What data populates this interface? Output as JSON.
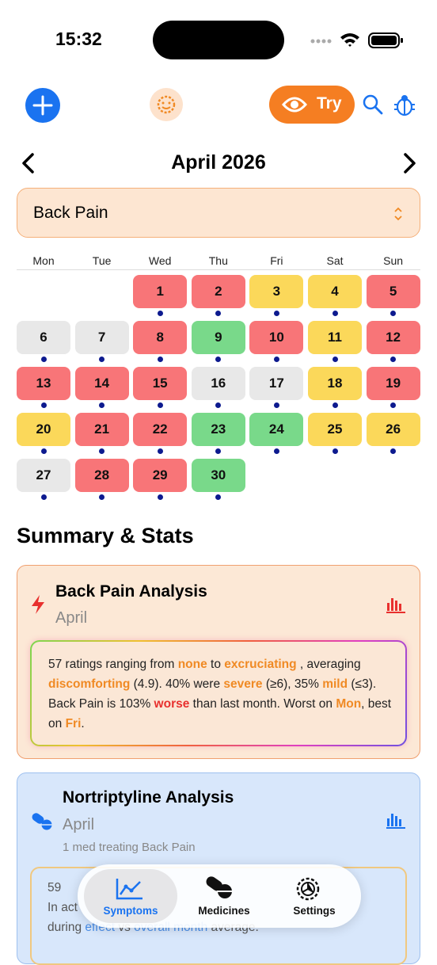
{
  "status": {
    "time": "15:32"
  },
  "toolbar": {
    "try": "Try"
  },
  "calendar": {
    "month": "April 2026",
    "selector": "Back Pain",
    "weekdays": [
      "Mon",
      "Tue",
      "Wed",
      "Thu",
      "Fri",
      "Sat",
      "Sun"
    ],
    "days": [
      {
        "label": "1",
        "color": "#f87578"
      },
      {
        "label": "2",
        "color": "#f87578"
      },
      {
        "label": "3",
        "color": "#fbd85a"
      },
      {
        "label": "4",
        "color": "#fbd85a"
      },
      {
        "label": "5",
        "color": "#f87578"
      },
      {
        "label": "6",
        "color": "#e8e8e8"
      },
      {
        "label": "7",
        "color": "#e8e8e8"
      },
      {
        "label": "8",
        "color": "#f87578"
      },
      {
        "label": "9",
        "color": "#79d98a"
      },
      {
        "label": "10",
        "color": "#f87578"
      },
      {
        "label": "11",
        "color": "#fbd85a"
      },
      {
        "label": "12",
        "color": "#f87578"
      },
      {
        "label": "13",
        "color": "#f87578"
      },
      {
        "label": "14",
        "color": "#f87578"
      },
      {
        "label": "15",
        "color": "#f87578"
      },
      {
        "label": "16",
        "color": "#e8e8e8"
      },
      {
        "label": "17",
        "color": "#e8e8e8"
      },
      {
        "label": "18",
        "color": "#fbd85a"
      },
      {
        "label": "19",
        "color": "#f87578"
      },
      {
        "label": "20",
        "color": "#fbd85a"
      },
      {
        "label": "21",
        "color": "#f87578"
      },
      {
        "label": "22",
        "color": "#f87578"
      },
      {
        "label": "23",
        "color": "#79d98a"
      },
      {
        "label": "24",
        "color": "#79d98a"
      },
      {
        "label": "25",
        "color": "#fbd85a"
      },
      {
        "label": "26",
        "color": "#fbd85a"
      },
      {
        "label": "27",
        "color": "#e8e8e8"
      },
      {
        "label": "28",
        "color": "#f87578"
      },
      {
        "label": "29",
        "color": "#f87578"
      },
      {
        "label": "30",
        "color": "#79d98a"
      }
    ]
  },
  "summary": {
    "heading": "Summary & Stats",
    "cards": [
      {
        "title": "Back Pain Analysis",
        "subtitle": "April",
        "segments": [
          {
            "text": "57 ratings ranging from ",
            "color": "#222222"
          },
          {
            "text": "none",
            "color": "#f08a24"
          },
          {
            "text": " to ",
            "color": "#222222"
          },
          {
            "text": "excruciating",
            "color": "#f08a24"
          },
          {
            "text": " , averaging ",
            "color": "#222222"
          },
          {
            "text": "discomforting",
            "color": "#f08a24"
          },
          {
            "text": " (4.9). 40% were ",
            "color": "#222222"
          },
          {
            "text": "severe",
            "color": "#f08a24"
          },
          {
            "text": " (≥6), 35% ",
            "color": "#222222"
          },
          {
            "text": "mild",
            "color": "#f08a24"
          },
          {
            "text": " (≤3). Back Pain is 103% ",
            "color": "#222222"
          },
          {
            "text": "worse",
            "color": "#e8302e"
          },
          {
            "text": " than last month. Worst on ",
            "color": "#222222"
          },
          {
            "text": "Mon",
            "color": "#f08a24"
          },
          {
            "text": ", best on ",
            "color": "#222222"
          },
          {
            "text": "Fri",
            "color": "#f08a24"
          },
          {
            "text": ".",
            "color": "#222222"
          }
        ]
      },
      {
        "title": "Nortriptyline Analysis",
        "subtitle": "April",
        "note": "1 med treating Back Pain",
        "segments": [
          {
            "text": "59 ",
            "color": "#555555"
          },
          {
            "text": "In act",
            "color": "#555555"
          },
          {
            "text": "during ",
            "color": "#555555"
          },
          {
            "text": "effect",
            "color": "#4a8ee8"
          },
          {
            "text": " vs ",
            "color": "#555555"
          },
          {
            "text": "overall month",
            "color": "#4a8ee8"
          },
          {
            "text": " average.",
            "color": "#555555"
          }
        ]
      }
    ]
  },
  "tabs": [
    "Symptoms",
    "Medicines",
    "Settings"
  ]
}
